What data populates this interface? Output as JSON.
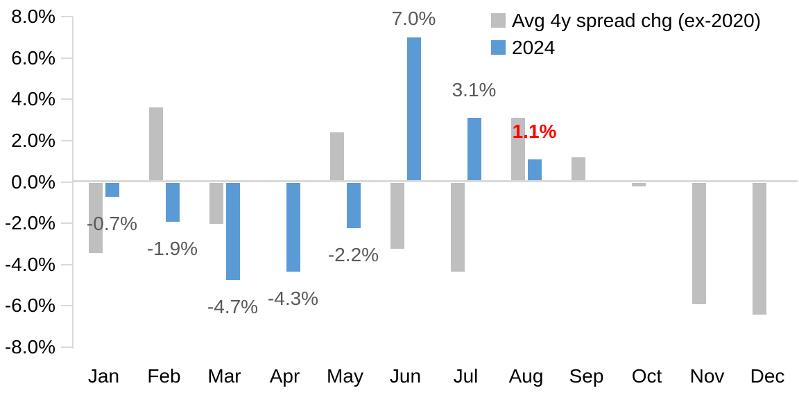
{
  "chart_data": {
    "type": "bar",
    "categories": [
      "Jan",
      "Feb",
      "Mar",
      "Apr",
      "May",
      "Jun",
      "Jul",
      "Aug",
      "Sep",
      "Oct",
      "Nov",
      "Dec"
    ],
    "series": [
      {
        "name": "Avg 4y spread chg (ex-2020)",
        "color": "#bfbfbf",
        "values": [
          -3.4,
          3.6,
          -2.0,
          0.0,
          2.4,
          -3.2,
          -4.3,
          3.1,
          1.2,
          -0.2,
          -5.9,
          -6.4
        ]
      },
      {
        "name": "2024",
        "color": "#5b9bd5",
        "values": [
          -0.7,
          -1.9,
          -4.7,
          -4.3,
          -2.2,
          7.0,
          3.1,
          1.1,
          null,
          null,
          null,
          null
        ]
      }
    ],
    "data_labels": [
      {
        "index": 0,
        "text": "-0.7%",
        "color": "#595959",
        "bold": false
      },
      {
        "index": 1,
        "text": "-1.9%",
        "color": "#595959",
        "bold": false
      },
      {
        "index": 2,
        "text": "-4.7%",
        "color": "#595959",
        "bold": false
      },
      {
        "index": 3,
        "text": "-4.3%",
        "color": "#595959",
        "bold": false
      },
      {
        "index": 4,
        "text": "-2.2%",
        "color": "#595959",
        "bold": false
      },
      {
        "index": 5,
        "text": "7.0%",
        "color": "#595959",
        "bold": false
      },
      {
        "index": 6,
        "text": "3.1%",
        "color": "#595959",
        "bold": false
      },
      {
        "index": 7,
        "text": "1.1%",
        "color": "#ff0000",
        "bold": true
      }
    ],
    "title": "",
    "xlabel": "",
    "ylabel": "",
    "ylim": [
      -8,
      8
    ],
    "ytick_step": 2,
    "ytick_labels": [
      "8.0%",
      "6.0%",
      "4.0%",
      "2.0%",
      "0.0%",
      "-2.0%",
      "-4.0%",
      "-6.0%",
      "-8.0%"
    ],
    "grid": "zero-line-only",
    "legend_position": "top-right",
    "axis_color": "#d9d9d9",
    "text_color": "#000000",
    "data_label_color": "#595959",
    "highlight_color": "#ff0000"
  }
}
